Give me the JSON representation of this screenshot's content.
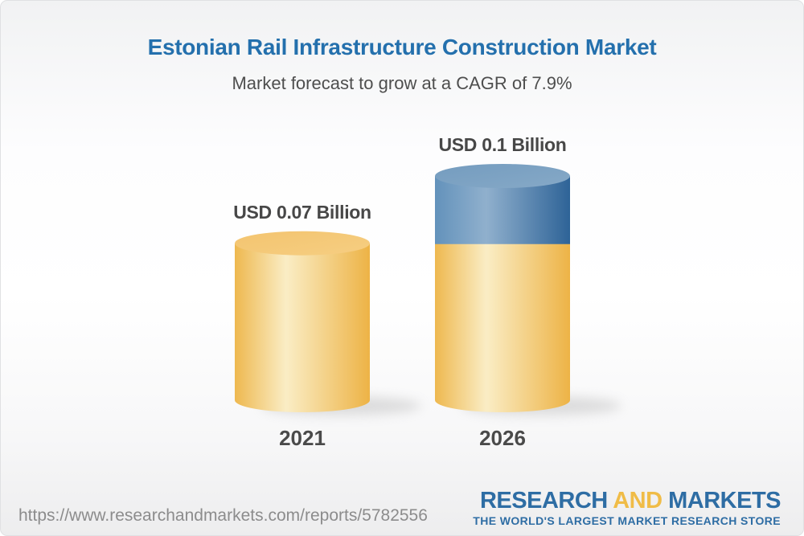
{
  "header": {
    "title": "Estonian Rail Infrastructure Construction Market",
    "subtitle": "Market forecast to grow at a CAGR of 7.9%"
  },
  "chart_data": {
    "type": "bar",
    "variant": "3d-cylinder",
    "title": "Estonian Rail Infrastructure Construction Market",
    "subtitle": "Market forecast to grow at a CAGR of 7.9%",
    "cagr_percent": 7.9,
    "unit": "USD Billion",
    "categories": [
      "2021",
      "2026"
    ],
    "values": [
      0.07,
      0.1
    ],
    "value_labels": [
      "USD 0.07 Billion",
      "USD 0.1 Billion"
    ],
    "series": [
      {
        "name": "base",
        "values": [
          0.07,
          0.07
        ],
        "color": "#F0BB52"
      },
      {
        "name": "growth",
        "values": [
          0,
          0.03
        ],
        "color": "#5E8CB5"
      }
    ],
    "legend": "none",
    "axes": "none",
    "colors": {
      "bar_yellow_edge": "#EEB84F",
      "bar_yellow_highlight": "#FAEDC5",
      "bar_yellow_top": "#F4C873",
      "bar_blue_edge": "#6392BB",
      "bar_blue_highlight": "#90B0CD",
      "bar_blue_dark": "#2E6397",
      "bar_blue_top": "#7BA2C3",
      "label_text": "#474747",
      "title_blue": "#2470AD"
    }
  },
  "footer": {
    "url": "https://www.researchandmarkets.com/reports/5782556",
    "logo": {
      "part1": "RESEARCH",
      "part2": "AND",
      "part3": "MARKETS",
      "tagline": "THE WORLD'S LARGEST MARKET RESEARCH STORE"
    },
    "colors": {
      "logo_blue": "#2E6DA4",
      "logo_gold": "#F0BC47"
    }
  }
}
